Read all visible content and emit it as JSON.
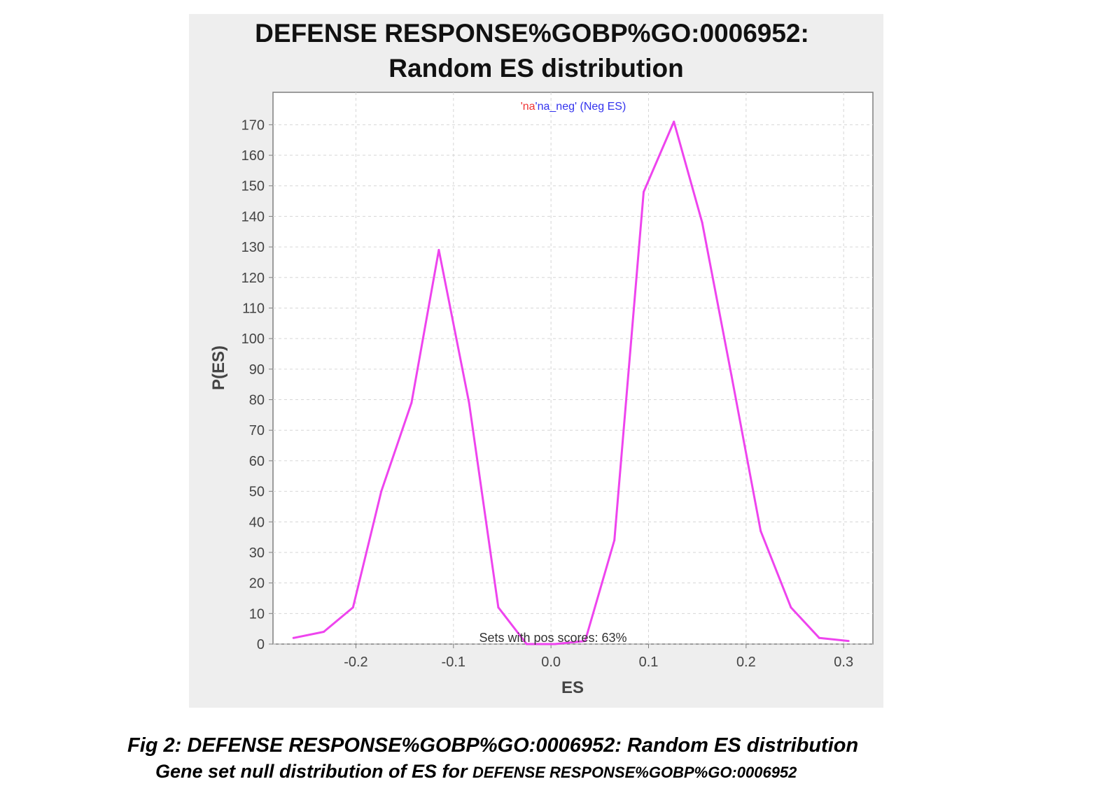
{
  "chart_data": {
    "type": "line",
    "title_line1": "DEFENSE RESPONSE%GOBP%GO:0006952:",
    "title_line2": "Random ES distribution",
    "xlabel": "ES",
    "ylabel": "P(ES)",
    "legend": {
      "part1": "'na",
      "part2": "'na_neg'",
      "part3": " (Neg ES)"
    },
    "annotation": "Sets with pos scores: 63%",
    "xlim": [
      -0.285,
      0.33
    ],
    "ylim": [
      0,
      171
    ],
    "x_ticks": [
      -0.2,
      -0.1,
      0.0,
      0.1,
      0.2,
      0.3
    ],
    "x_tick_labels": [
      "-0.2",
      "-0.1",
      "0.0",
      "0.1",
      "0.2",
      "0.3"
    ],
    "y_ticks": [
      0,
      10,
      20,
      30,
      40,
      50,
      60,
      70,
      80,
      90,
      100,
      110,
      120,
      130,
      140,
      150,
      160,
      170
    ],
    "grid": true,
    "series": [
      {
        "color": "#ee44ee",
        "x": [
          -0.264,
          -0.233,
          -0.203,
          -0.174,
          -0.143,
          -0.115,
          -0.084,
          -0.054,
          -0.025,
          0.004,
          0.035,
          0.065,
          0.095,
          0.126,
          0.155,
          0.185,
          0.215,
          0.246,
          0.275,
          0.305
        ],
        "y": [
          2,
          4,
          12,
          50,
          79,
          129,
          79,
          12,
          0,
          0,
          1,
          34,
          148,
          171,
          138,
          88,
          37,
          12,
          2,
          1
        ]
      }
    ]
  },
  "caption": {
    "line1": "Fig 2: DEFENSE RESPONSE%GOBP%GO:0006952: Random ES distribution",
    "line2_main": "Gene set null distribution of ES for ",
    "line2_small": "DEFENSE RESPONSE%GOBP%GO:0006952"
  }
}
